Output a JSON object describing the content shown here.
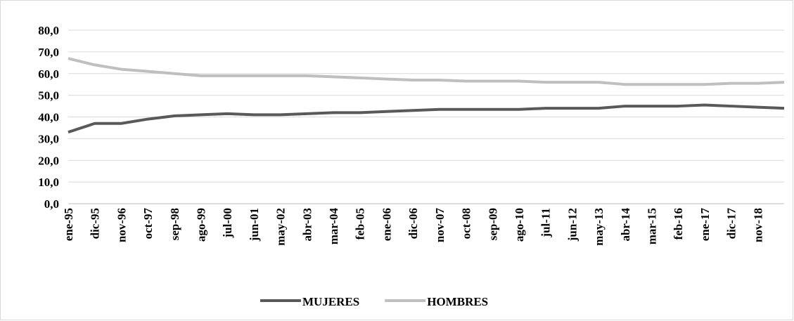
{
  "chart_data": {
    "type": "line",
    "categories": [
      "ene-95",
      "dic-95",
      "nov-96",
      "oct-97",
      "sep-98",
      "ago-99",
      "jul-00",
      "jun-01",
      "may-02",
      "abr-03",
      "mar-04",
      "feb-05",
      "ene-06",
      "dic-06",
      "nov-07",
      "oct-08",
      "sep-09",
      "ago-10",
      "jul-11",
      "jun-12",
      "may-13",
      "abr-14",
      "mar-15",
      "feb-16",
      "ene-17",
      "dic-17",
      "nov-18",
      null
    ],
    "series": [
      {
        "name": "MUJERES",
        "color": "#595959",
        "values": [
          33,
          37,
          37,
          39,
          40.5,
          41,
          41.5,
          41,
          41,
          41.5,
          42,
          42,
          42.5,
          43,
          43.5,
          43.5,
          43.5,
          43.5,
          44,
          44,
          44,
          45,
          45,
          45,
          45.5,
          45,
          44.5,
          44
        ]
      },
      {
        "name": "HOMBRES",
        "color": "#bfbfbf",
        "values": [
          67,
          64,
          62,
          61,
          60,
          59,
          59,
          59,
          59,
          59,
          58.5,
          58,
          57.5,
          57,
          57,
          56.5,
          56.5,
          56.5,
          56,
          56,
          56,
          55,
          55,
          55,
          55,
          55.5,
          55.5,
          56
        ]
      }
    ],
    "ylim": [
      0,
      80
    ],
    "yticks": [
      {
        "value": 0,
        "label": "0,0"
      },
      {
        "value": 10,
        "label": "10,0"
      },
      {
        "value": 20,
        "label": "20,0"
      },
      {
        "value": 30,
        "label": "30,0"
      },
      {
        "value": 40,
        "label": "40,0"
      },
      {
        "value": 50,
        "label": "50,0"
      },
      {
        "value": 60,
        "label": "60,0"
      },
      {
        "value": 70,
        "label": "70,0"
      },
      {
        "value": 80,
        "label": "80,0"
      }
    ],
    "grid": true,
    "legend": "bottom"
  }
}
